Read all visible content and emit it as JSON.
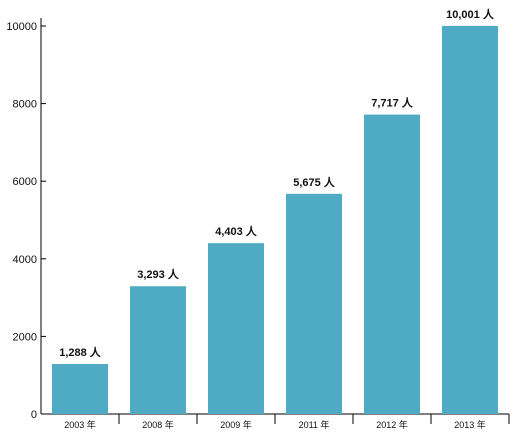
{
  "chart_data": {
    "type": "bar",
    "categories": [
      "2003 年",
      "2008 年",
      "2009 年",
      "2011 年",
      "2012 年",
      "2013 年"
    ],
    "values": [
      1288,
      3293,
      4403,
      5675,
      7717,
      10001
    ],
    "data_labels": [
      "1,288 人",
      "3,293 人",
      "4,403 人",
      "5,675 人",
      "7,717 人",
      "10,001 人"
    ],
    "title": "",
    "xlabel": "",
    "ylabel": "",
    "ylim": [
      0,
      10000
    ],
    "yticks": [
      0,
      2000,
      4000,
      6000,
      8000,
      10000
    ],
    "grid": false,
    "legend": "none",
    "bar_color": "#4fabc4"
  }
}
